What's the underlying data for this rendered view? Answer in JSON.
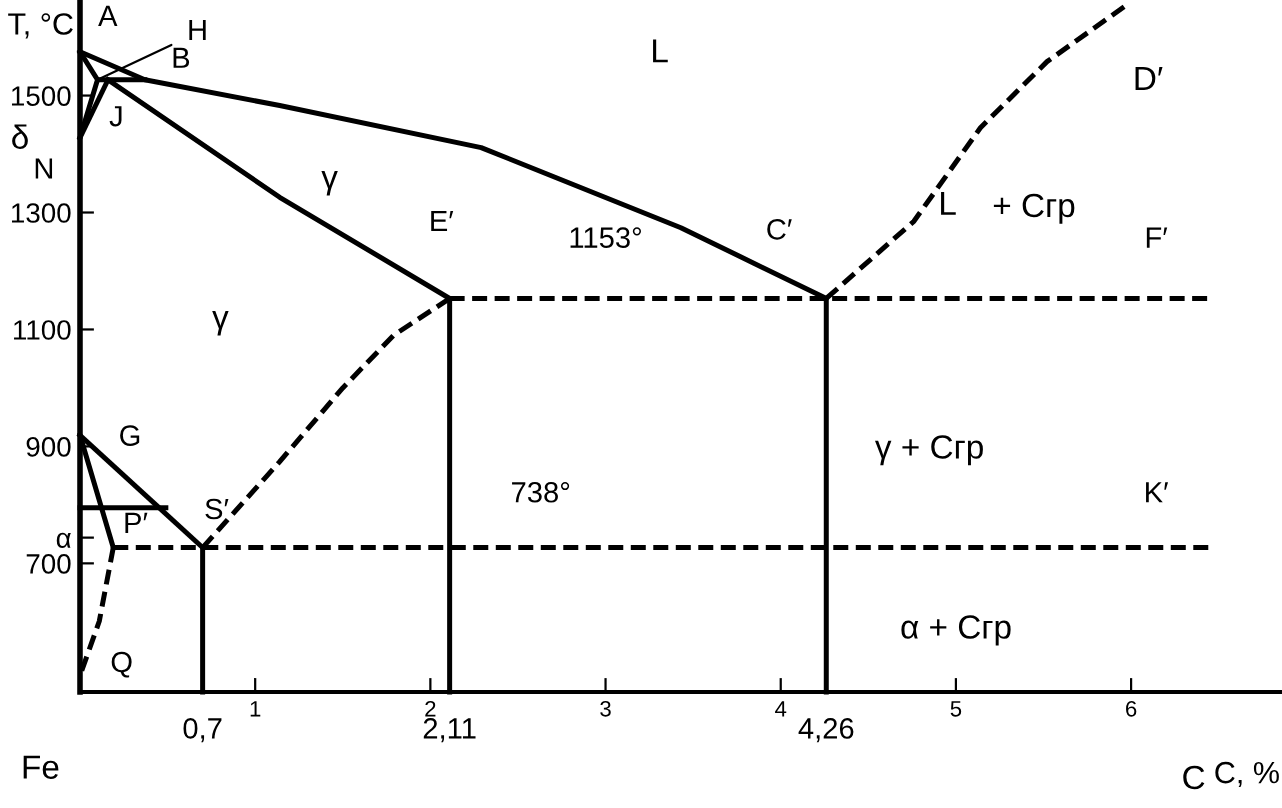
{
  "chart_data": {
    "type": "line",
    "xlabel": "C, %",
    "ylabel": "T, °C",
    "xlim": [
      0,
      6.85
    ],
    "ylim": [
      480,
      1660
    ],
    "xticks": [
      1,
      2,
      3,
      4,
      5,
      6
    ],
    "yticks": [
      700,
      {
        "value": 744,
        "label": "α"
      },
      900,
      1100,
      1300,
      1500
    ],
    "grid": false,
    "legend": false,
    "marker": "none",
    "series": [
      {
        "color": "#000000",
        "line_style": "solid",
        "x": [
          0,
          0.37,
          1.14,
          2.29,
          3.43,
          4.26
        ],
        "values": [
          1575,
          1527,
          1483,
          1411,
          1274,
          1153
        ]
      },
      {
        "color": "#000000",
        "line_style": "solid",
        "x": [
          0.1,
          0.37
        ],
        "values": [
          1527,
          1527
        ]
      },
      {
        "color": "#000000",
        "line_style": "solid",
        "x": [
          0,
          0.1,
          0
        ],
        "values": [
          1575,
          1527,
          1428
        ]
      },
      {
        "color": "#000000",
        "line_style": "solid",
        "x": [
          0.16,
          0
        ],
        "values": [
          1527,
          1428
        ]
      },
      {
        "color": "#000000",
        "line_style": "solid",
        "x": [
          0.16,
          1.14,
          2.11
        ],
        "values": [
          1527,
          1326,
          1153
        ]
      },
      {
        "color": "#000000",
        "line_style": "dashed",
        "x": [
          4.26,
          4.76,
          5.14,
          5.52,
          5.97
        ],
        "values": [
          1153,
          1285,
          1445,
          1558,
          1654
        ]
      },
      {
        "color": "#000000",
        "line_style": "dashed",
        "x": [
          2.11,
          6.46
        ],
        "values": [
          1153,
          1153
        ]
      },
      {
        "color": "#000000",
        "line_style": "dashed",
        "x": [
          0.7,
          1.14,
          1.5,
          1.79,
          2.11
        ],
        "values": [
          727,
          874,
          1000,
          1090,
          1153
        ]
      },
      {
        "color": "#000000",
        "line_style": "solid",
        "x": [
          0,
          0.7
        ],
        "values": [
          919,
          727
        ]
      },
      {
        "color": "#000000",
        "line_style": "solid",
        "x": [
          0,
          0.19
        ],
        "values": [
          919,
          727
        ]
      },
      {
        "color": "#000000",
        "line_style": "solid",
        "x": [
          0,
          0.49
        ],
        "values": [
          795,
          795
        ]
      },
      {
        "color": "#000000",
        "line_style": "dashed",
        "x": [
          0.19,
          6.46
        ],
        "values": [
          727,
          727
        ]
      },
      {
        "color": "#000000",
        "line_style": "dashed",
        "x": [
          0.19,
          0.11,
          0
        ],
        "values": [
          727,
          601,
          508
        ]
      },
      {
        "color": "#000000",
        "line_style": "solid",
        "x": [
          0.7,
          0.7
        ],
        "values": [
          727,
          480
        ]
      },
      {
        "color": "#000000",
        "line_style": "solid",
        "x": [
          2.11,
          2.11
        ],
        "values": [
          1153,
          480
        ]
      },
      {
        "color": "#000000",
        "line_style": "solid",
        "x": [
          4.26,
          4.26
        ],
        "values": [
          1153,
          480
        ]
      }
    ],
    "annotations": [
      {
        "text": "A",
        "x": 0,
        "y": 1575
      },
      {
        "text": "H",
        "x": 0.1,
        "y": 1527
      },
      {
        "text": "B",
        "x": 0.37,
        "y": 1527
      },
      {
        "text": "J",
        "x": 0.16,
        "y": 1527
      },
      {
        "text": "N",
        "x": 0,
        "y": 1428
      },
      {
        "text": "G",
        "x": 0,
        "y": 919
      },
      {
        "text": "P′",
        "x": 0.19,
        "y": 727
      },
      {
        "text": "S′",
        "x": 0.7,
        "y": 727
      },
      {
        "text": "Q",
        "x": 0,
        "y": 508
      },
      {
        "text": "E′",
        "x": 2.11,
        "y": 1153
      },
      {
        "text": "C′",
        "x": 4.26,
        "y": 1153
      },
      {
        "text": "F′",
        "x": 6.46,
        "y": 1153
      },
      {
        "text": "K′",
        "x": 6.46,
        "y": 727
      },
      {
        "text": "1153°",
        "x": 3.0,
        "y": 1153
      },
      {
        "text": "738°",
        "x": 2.63,
        "y": 727
      },
      {
        "text": "0,7",
        "x": 0.7,
        "y": 480
      },
      {
        "text": "2,11",
        "x": 2.11,
        "y": 480
      },
      {
        "text": "4,26",
        "x": 4.26,
        "y": 480
      },
      "δ",
      "L",
      "γ",
      "γ",
      "L",
      "+ Cгр",
      "γ + Cгр",
      "α + Cгр",
      "C",
      "D′",
      "Fe"
    ]
  }
}
